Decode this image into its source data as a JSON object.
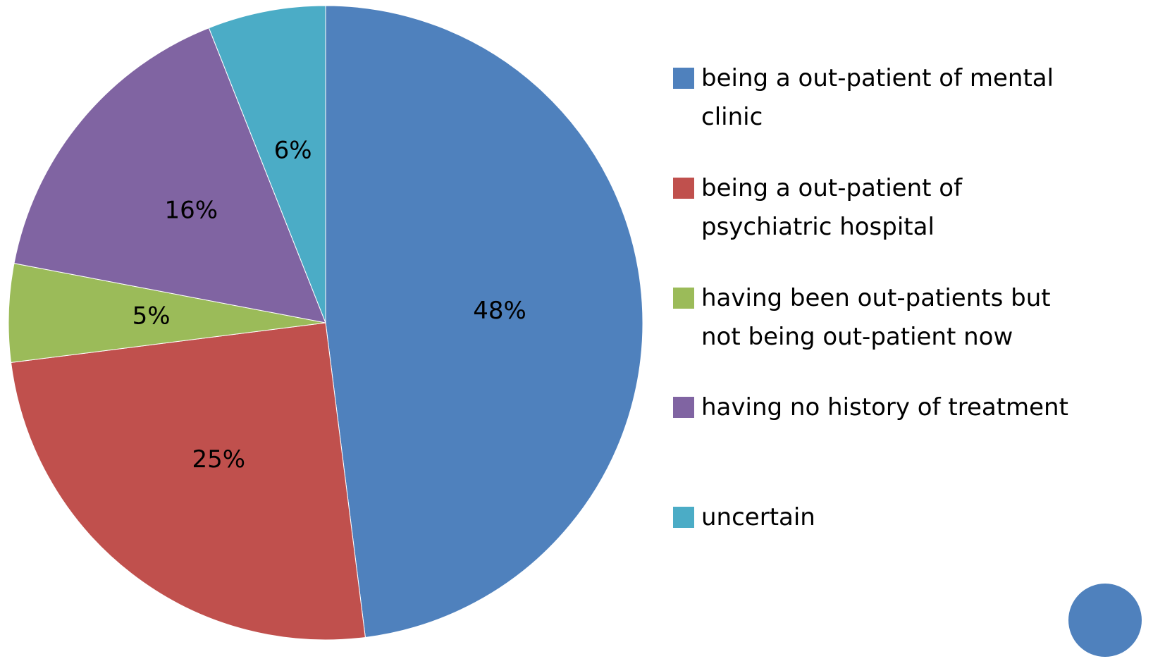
{
  "chart_data": {
    "type": "pie",
    "categories": [
      "being a out-patient of mental clinic",
      "being a out-patient of psychiatric hospital",
      "having been out-patients but not being out-patient now",
      "having no history of treatment",
      "uncertain"
    ],
    "values": [
      48,
      25,
      5,
      16,
      6
    ],
    "value_labels": [
      "48%",
      "25%",
      "5%",
      "16%",
      "6%"
    ],
    "colors": [
      "#4f81bd",
      "#c0504d",
      "#9bbb59",
      "#8064a2",
      "#4bacc6"
    ],
    "legend": "right"
  }
}
